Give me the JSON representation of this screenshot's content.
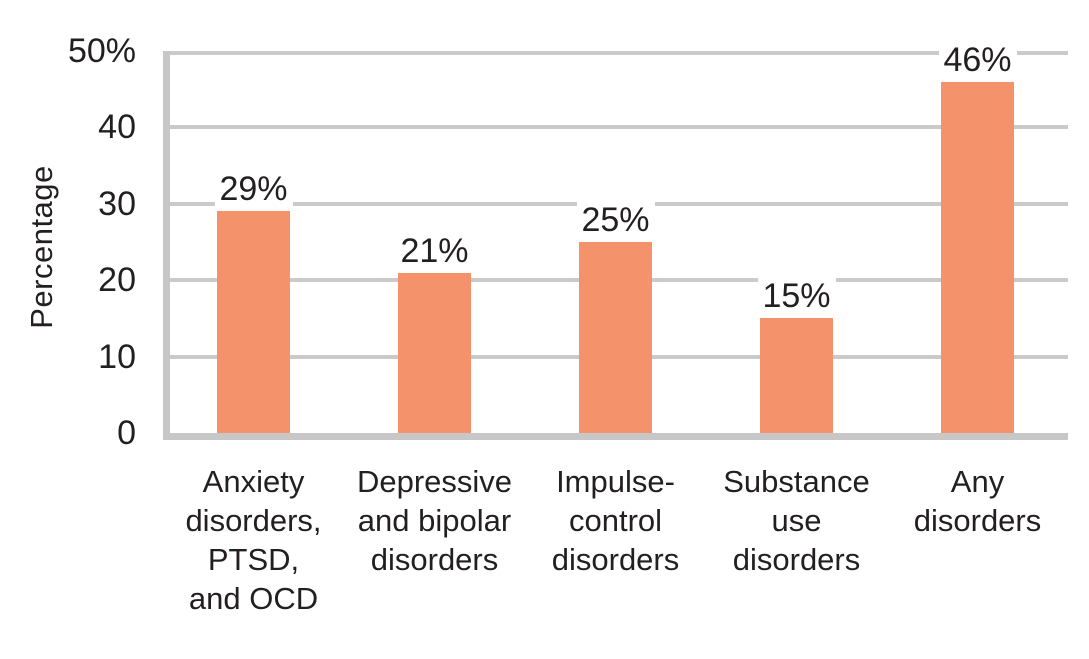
{
  "chart_data": {
    "type": "bar",
    "title": "",
    "xlabel": "",
    "ylabel": "Percentage",
    "categories": [
      "Anxiety disorders, PTSD, and OCD",
      "Depressive and bipolar disorders",
      "Impulse-control disorders",
      "Substance use disorders",
      "Any disorders"
    ],
    "category_display_lines": [
      "Anxiety\ndisorders,\nPTSD,\nand OCD",
      "Depressive\nand bipolar\ndisorders",
      "Impulse-\ncontrol\ndisorders",
      "Substance\nuse\ndisorders",
      "Any\ndisorders"
    ],
    "values": [
      29,
      21,
      25,
      15,
      46
    ],
    "value_labels": [
      "29%",
      "21%",
      "25%",
      "15%",
      "46%"
    ],
    "y_ticks": [
      {
        "label": "50%",
        "value": 50
      },
      {
        "label": "40",
        "value": 40
      },
      {
        "label": "30",
        "value": 30
      },
      {
        "label": "20",
        "value": 20
      },
      {
        "label": "10",
        "value": 10
      },
      {
        "label": "0",
        "value": 0
      }
    ],
    "ylim": [
      0,
      50
    ],
    "grid": true,
    "legend": false,
    "colors": {
      "bar": "#F4936B",
      "gridline": "#CACACA",
      "axis": "#C7C7C7",
      "text": "#231F20",
      "background": "#FFFFFF"
    }
  }
}
